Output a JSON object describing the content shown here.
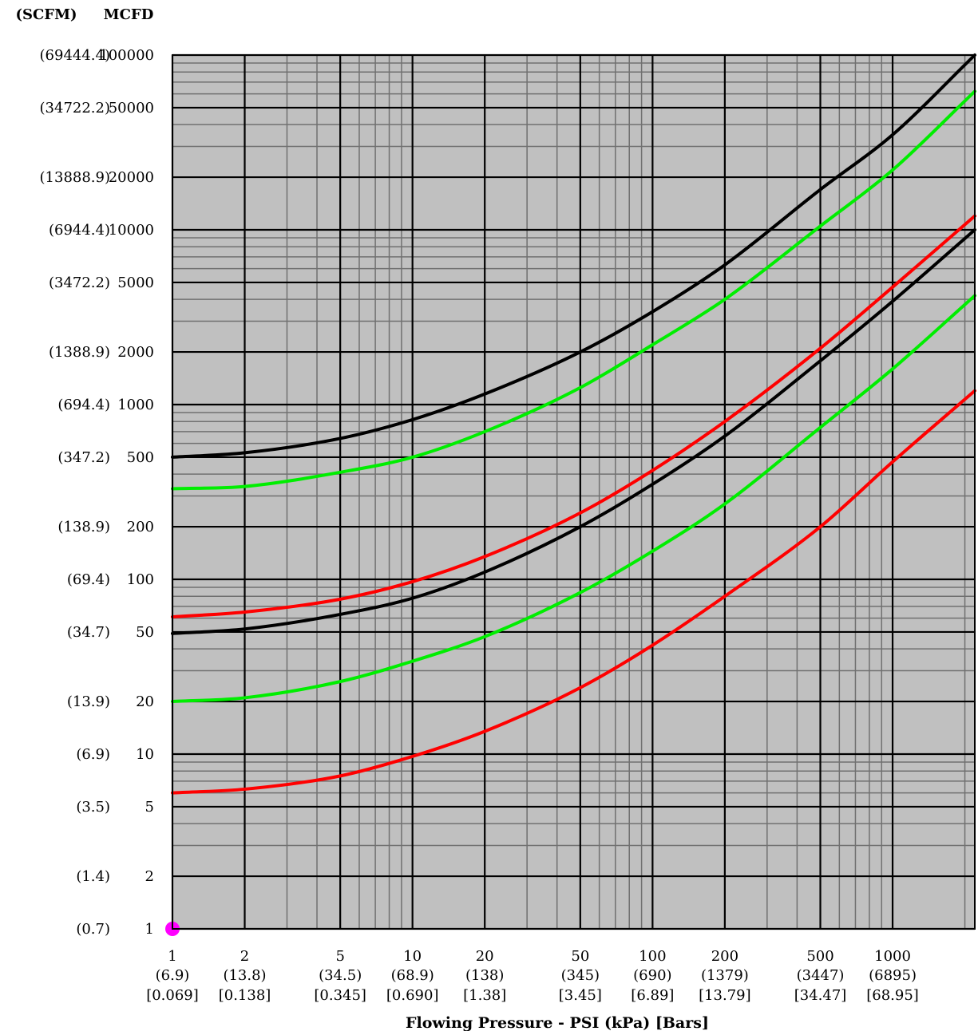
{
  "chart_data": {
    "type": "line",
    "title": "",
    "xlabel": "Flowing Pressure - PSI (kPa) [Bars]",
    "ylabel_left": "(SCFM)",
    "ylabel_right": "MCFD",
    "x_scale": "log",
    "y_scale": "log",
    "xlim": [
      1,
      2200
    ],
    "ylim": [
      1,
      100000
    ],
    "grid": true,
    "legend": "none",
    "x_ticks": [
      {
        "psi": 1,
        "label": "1",
        "kpa": "(6.9)",
        "bar": "[0.069]"
      },
      {
        "psi": 2,
        "label": "2",
        "kpa": "(13.8)",
        "bar": "[0.138]"
      },
      {
        "psi": 5,
        "label": "5",
        "kpa": "(34.5)",
        "bar": "[0.345]"
      },
      {
        "psi": 10,
        "label": "10",
        "kpa": "(68.9)",
        "bar": "[0.690]"
      },
      {
        "psi": 20,
        "label": "20",
        "kpa": "(138)",
        "bar": "[1.38]"
      },
      {
        "psi": 50,
        "label": "50",
        "kpa": "(345)",
        "bar": "[3.45]"
      },
      {
        "psi": 100,
        "label": "100",
        "kpa": "(690)",
        "bar": "[6.89]"
      },
      {
        "psi": 200,
        "label": "200",
        "kpa": "(1379)",
        "bar": "[13.79]"
      },
      {
        "psi": 500,
        "label": "500",
        "kpa": "(3447)",
        "bar": "[34.47]"
      },
      {
        "psi": 1000,
        "label": "1000",
        "kpa": "(6895)",
        "bar": "[68.95]"
      }
    ],
    "y_ticks": [
      {
        "mcfd": 100000,
        "label": "100000",
        "scfm": "(69444.4)"
      },
      {
        "mcfd": 50000,
        "label": "50000",
        "scfm": "(34722.2)"
      },
      {
        "mcfd": 20000,
        "label": "20000",
        "scfm": "(13888.9)"
      },
      {
        "mcfd": 10000,
        "label": "10000",
        "scfm": "(6944.4)"
      },
      {
        "mcfd": 5000,
        "label": "5000",
        "scfm": "(3472.2)"
      },
      {
        "mcfd": 2000,
        "label": "2000",
        "scfm": "(1388.9)"
      },
      {
        "mcfd": 1000,
        "label": "1000",
        "scfm": "(694.4)"
      },
      {
        "mcfd": 500,
        "label": "500",
        "scfm": "(347.2)"
      },
      {
        "mcfd": 200,
        "label": "200",
        "scfm": "(138.9)"
      },
      {
        "mcfd": 100,
        "label": "100",
        "scfm": "(69.4)"
      },
      {
        "mcfd": 50,
        "label": "50",
        "scfm": "(34.7)"
      },
      {
        "mcfd": 20,
        "label": "20",
        "scfm": "(13.9)"
      },
      {
        "mcfd": 10,
        "label": "10",
        "scfm": "(6.9)"
      },
      {
        "mcfd": 5,
        "label": "5",
        "scfm": "(3.5)"
      },
      {
        "mcfd": 2,
        "label": "2",
        "scfm": "(1.4)"
      },
      {
        "mcfd": 1,
        "label": "1",
        "scfm": "(0.7)"
      }
    ],
    "series": [
      {
        "color": "#000000",
        "x": [
          1,
          2,
          5,
          10,
          20,
          50,
          100,
          200,
          500,
          1000,
          2200
        ],
        "y": [
          500,
          530,
          640,
          820,
          1150,
          2000,
          3400,
          6300,
          17000,
          35000,
          100000
        ]
      },
      {
        "color": "#00ee00",
        "x": [
          1,
          2,
          5,
          10,
          20,
          50,
          100,
          200,
          500,
          1000,
          2200
        ],
        "y": [
          330,
          340,
          410,
          500,
          700,
          1250,
          2200,
          4000,
          10500,
          22000,
          62000
        ]
      },
      {
        "color": "#ff0000",
        "x": [
          1,
          2,
          5,
          10,
          20,
          50,
          100,
          200,
          500,
          1000,
          2200
        ],
        "y": [
          61,
          65,
          77,
          97,
          135,
          240,
          420,
          800,
          2100,
          4700,
          12000
        ]
      },
      {
        "color": "#000000",
        "x": [
          1,
          2,
          5,
          10,
          20,
          50,
          100,
          200,
          500,
          1000,
          2200
        ],
        "y": [
          49,
          52,
          63,
          78,
          110,
          200,
          350,
          660,
          1780,
          3900,
          10000
        ]
      },
      {
        "color": "#00ee00",
        "x": [
          1,
          2,
          5,
          10,
          20,
          50,
          100,
          200,
          500,
          1000,
          2200
        ],
        "y": [
          20,
          21,
          26,
          34,
          47,
          84,
          145,
          270,
          740,
          1600,
          4200
        ]
      },
      {
        "color": "#ff0000",
        "x": [
          1,
          2,
          5,
          10,
          20,
          50,
          100,
          200,
          500,
          1000,
          2200
        ],
        "y": [
          6,
          6.3,
          7.5,
          9.7,
          13.5,
          24,
          42,
          80,
          200,
          470,
          1200
        ]
      }
    ],
    "marker": {
      "x": 1,
      "y": 1,
      "color": "#ff00ff"
    },
    "plot_background": "#c0c0c0"
  }
}
